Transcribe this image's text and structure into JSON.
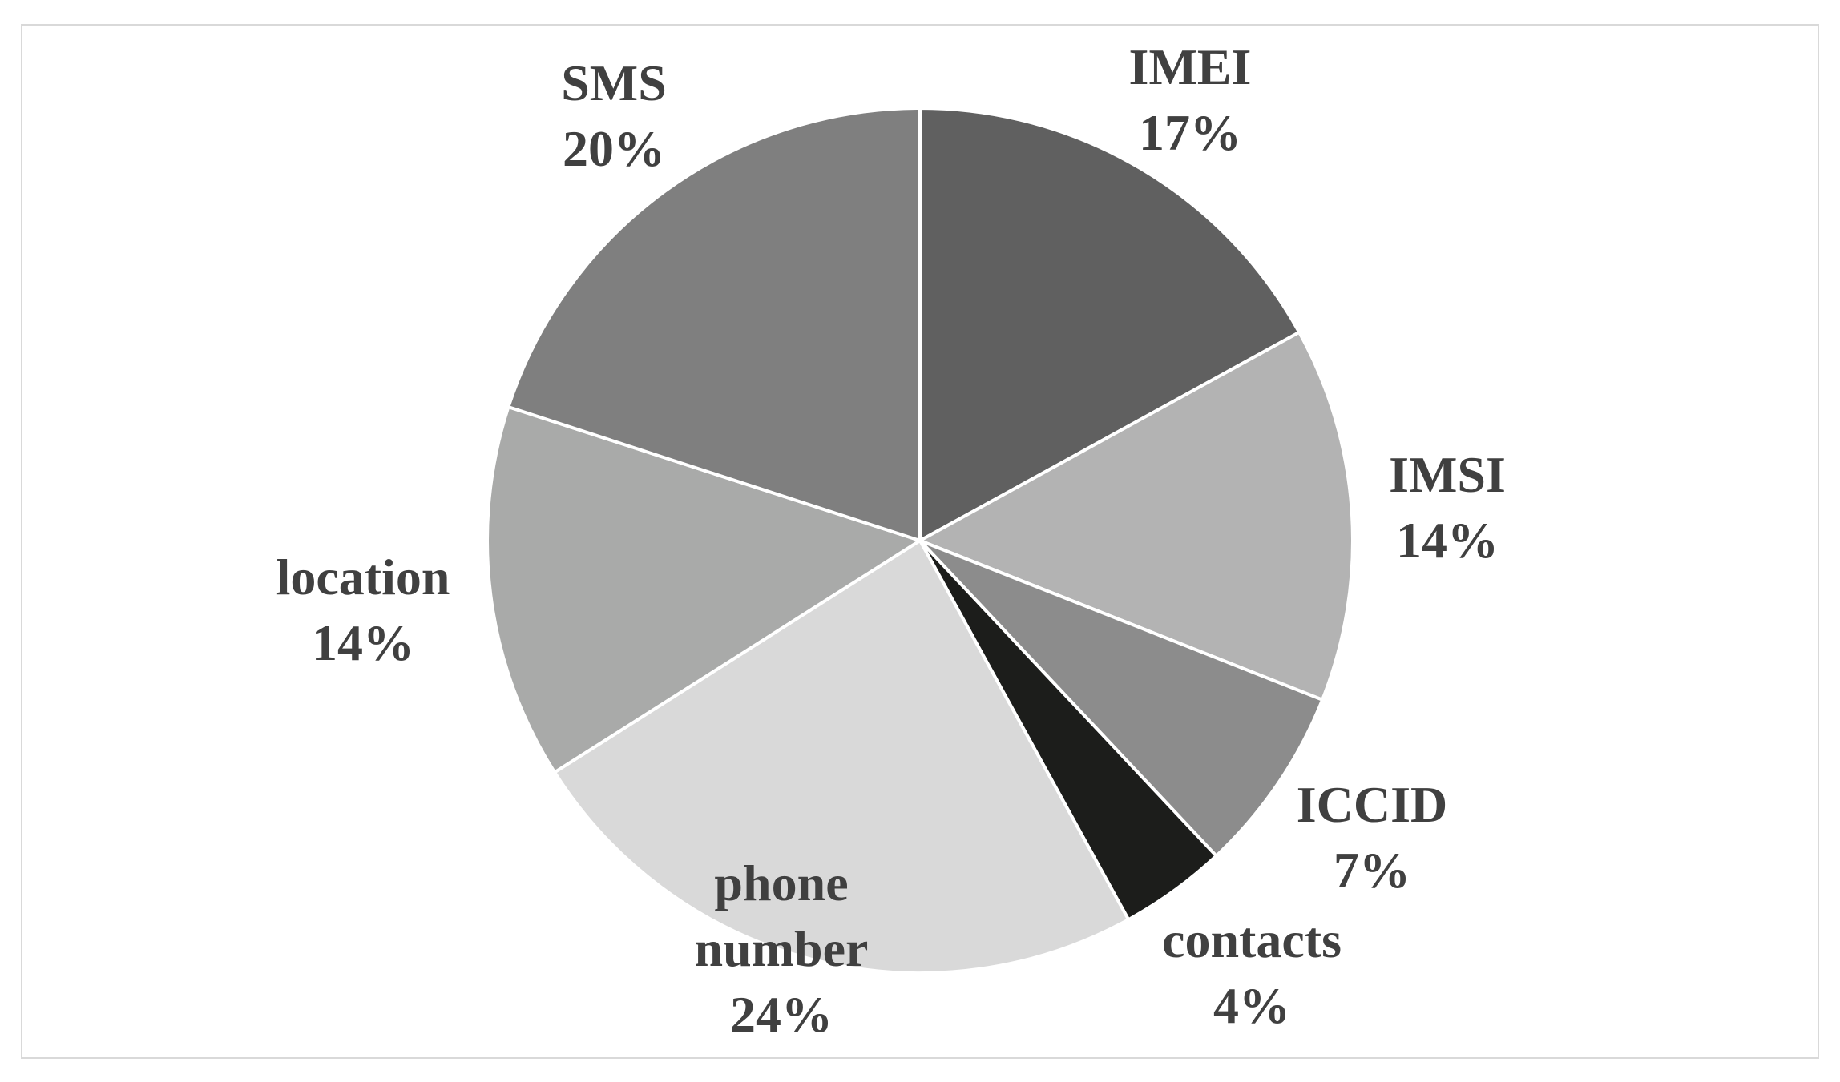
{
  "chart_data": {
    "type": "pie",
    "title": "",
    "legend": "none",
    "slices": [
      {
        "label": [
          "IMEI"
        ],
        "value": 17,
        "value_label": "17%",
        "color": "#606060"
      },
      {
        "label": [
          "IMSI"
        ],
        "value": 14,
        "value_label": "14%",
        "color": "#b3b3b3"
      },
      {
        "label": [
          "ICCID"
        ],
        "value": 7,
        "value_label": "7%",
        "color": "#8c8c8c"
      },
      {
        "label": [
          "contacts"
        ],
        "value": 4,
        "value_label": "4%",
        "color": "#1c1d1b"
      },
      {
        "label": [
          "phone",
          "number"
        ],
        "value": 24,
        "value_label": "24%",
        "color": "#d9d9d9"
      },
      {
        "label": [
          "location"
        ],
        "value": 14,
        "value_label": "14%",
        "color": "#a9aaa9"
      },
      {
        "label": [
          "SMS"
        ],
        "value": 20,
        "value_label": "20%",
        "color": "#7f7f7f"
      }
    ]
  }
}
